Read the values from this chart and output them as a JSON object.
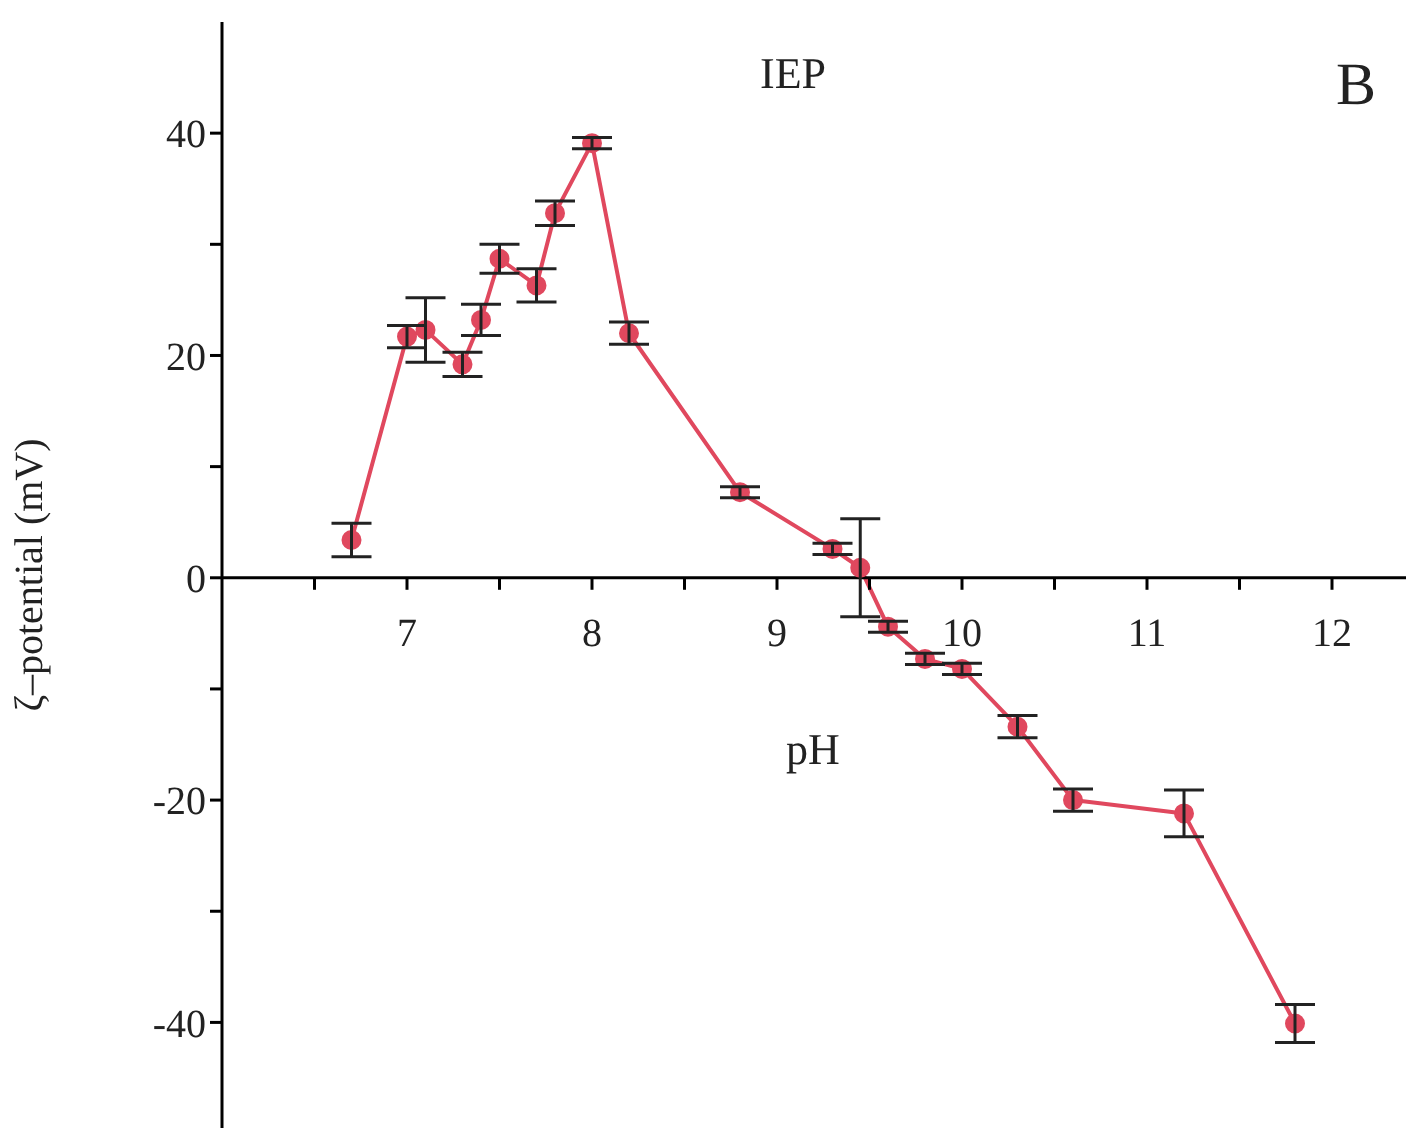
{
  "chart_data": {
    "type": "line",
    "xlabel": "pH",
    "ylabel": "ζ–potential (mV)",
    "annotations": [
      "IEP",
      "B"
    ],
    "x": [
      6.7,
      7.0,
      7.1,
      7.3,
      7.4,
      7.5,
      7.7,
      7.8,
      8.0,
      8.2,
      8.8,
      9.3,
      9.45,
      9.6,
      9.8,
      10.0,
      10.3,
      10.6,
      11.2,
      11.8
    ],
    "series": [
      {
        "color": "#e0485e",
        "values": [
          3.4,
          21.7,
          22.3,
          19.2,
          23.2,
          28.7,
          26.3,
          32.8,
          39.1,
          22.0,
          7.7,
          2.6,
          0.9,
          -4.4,
          -7.3,
          -8.2,
          -13.4,
          -20.0,
          -21.2,
          -40.1
        ],
        "errors": [
          1.5,
          1,
          2.9,
          1.1,
          1.4,
          1.3,
          1.5,
          1.1,
          0.5,
          1,
          0.5,
          0.5,
          4.4,
          0.5,
          0.5,
          0.5,
          1,
          1,
          2.1,
          1.7
        ]
      }
    ],
    "xlim": [
      6,
      12.4
    ],
    "xticks": [
      {
        "value": 6.5,
        "label": null
      },
      7,
      {
        "value": 7.5,
        "label": null
      },
      8,
      {
        "value": 8.5,
        "label": null
      },
      9,
      {
        "value": 9.5,
        "label": null
      },
      10,
      {
        "value": 10.5,
        "label": null
      },
      11,
      {
        "value": 11.5,
        "label": null
      },
      12
    ],
    "ylim": [
      -49.5,
      50
    ],
    "yticks": [
      -40,
      {
        "value": -30,
        "label": null
      },
      -20,
      {
        "value": -10,
        "label": null
      },
      0,
      {
        "value": 10,
        "label": null
      },
      20,
      {
        "value": 30,
        "label": null
      },
      40
    ],
    "marker": "circle",
    "line_style": "solid",
    "grid": false,
    "legend": false
  }
}
